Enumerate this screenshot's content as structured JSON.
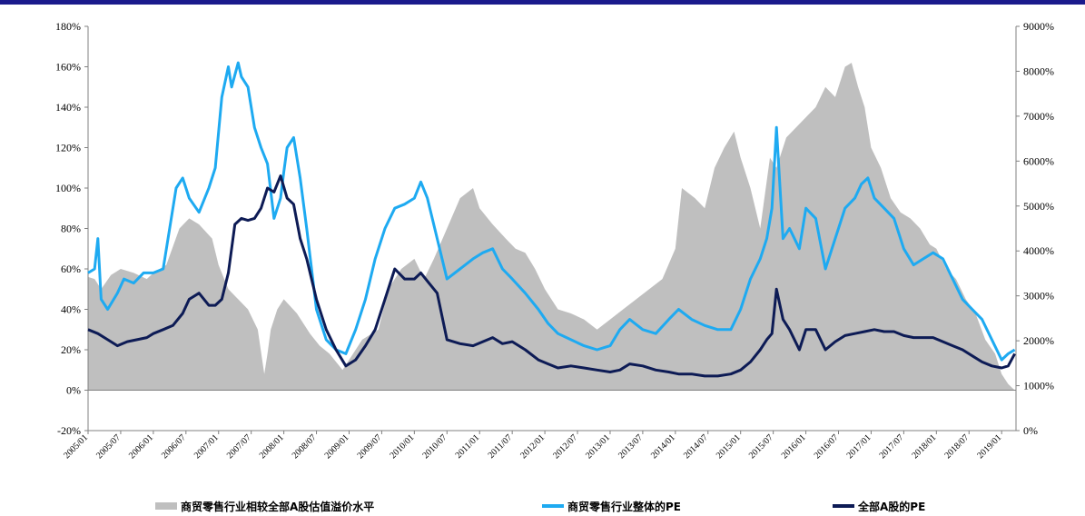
{
  "colors": {
    "top_bar": "#1a1a8c",
    "area": "#bfbfbf",
    "sector_pe": "#1eaaf1",
    "market_pe": "#0d1b55"
  },
  "chart_data": {
    "type": "line",
    "title": "",
    "xlabel": "",
    "ylabel": "",
    "ylim": [
      -20,
      180
    ],
    "y2lim": [
      0,
      9000
    ],
    "yticks": [
      "-20%",
      "0%",
      "20%",
      "40%",
      "60%",
      "80%",
      "100%",
      "120%",
      "140%",
      "160%",
      "180%"
    ],
    "y2ticks": [
      "0%",
      "1000%",
      "2000%",
      "3000%",
      "4000%",
      "5000%",
      "6000%",
      "7000%",
      "8000%",
      "9000%"
    ],
    "xticks": [
      "2005/01",
      "2005/07",
      "2006/01",
      "2006/07",
      "2007/01",
      "2007/07",
      "2008/01",
      "2008/07",
      "2009/01",
      "2009/07",
      "2010/01",
      "2010/07",
      "2011/01",
      "2011/07",
      "2012/01",
      "2012/07",
      "2013/01",
      "2013/07",
      "2014/01",
      "2014/07",
      "2015/01",
      "2015/07",
      "2016/01",
      "2016/07",
      "2017/01",
      "2017/07",
      "2018/01",
      "2018/07",
      "2019/01"
    ],
    "grid": false,
    "legend_position": "bottom",
    "series": [
      {
        "name": "商贸零售行业相较全部A股估值溢价水平",
        "kind": "area",
        "axis": "left",
        "x": [
          2005.0,
          2005.1,
          2005.2,
          2005.35,
          2005.5,
          2005.7,
          2005.9,
          2006.0,
          2006.2,
          2006.4,
          2006.55,
          2006.7,
          2006.9,
          2007.0,
          2007.15,
          2007.3,
          2007.45,
          2007.6,
          2007.7,
          2007.75,
          2007.8,
          2007.9,
          2008.0,
          2008.2,
          2008.4,
          2008.55,
          2008.7,
          2008.9,
          2009.0,
          2009.2,
          2009.45,
          2009.6,
          2009.8,
          2010.0,
          2010.15,
          2010.3,
          2010.5,
          2010.7,
          2010.9,
          2011.0,
          2011.2,
          2011.4,
          2011.55,
          2011.7,
          2011.85,
          2012.0,
          2012.2,
          2012.4,
          2012.6,
          2012.8,
          2013.0,
          2013.2,
          2013.4,
          2013.6,
          2013.8,
          2014.0,
          2014.1,
          2014.3,
          2014.45,
          2014.6,
          2014.75,
          2014.9,
          2015.0,
          2015.15,
          2015.3,
          2015.45,
          2015.55,
          2015.7,
          2015.85,
          2016.0,
          2016.15,
          2016.3,
          2016.45,
          2016.6,
          2016.7,
          2016.8,
          2016.9,
          2017.0,
          2017.15,
          2017.3,
          2017.45,
          2017.6,
          2017.75,
          2017.9,
          2018.0,
          2018.15,
          2018.3,
          2018.45,
          2018.6,
          2018.75,
          2018.9,
          2019.0,
          2019.1,
          2019.2
        ],
        "values": [
          56,
          55,
          50,
          57,
          60,
          58,
          55,
          58,
          62,
          80,
          85,
          82,
          75,
          62,
          50,
          45,
          40,
          30,
          8,
          18,
          30,
          40,
          45,
          38,
          28,
          22,
          18,
          10,
          15,
          25,
          30,
          50,
          60,
          65,
          55,
          65,
          80,
          95,
          100,
          90,
          82,
          75,
          70,
          68,
          60,
          50,
          40,
          38,
          35,
          30,
          35,
          40,
          45,
          50,
          55,
          70,
          100,
          95,
          90,
          110,
          120,
          128,
          115,
          100,
          80,
          115,
          110,
          125,
          130,
          135,
          140,
          150,
          145,
          160,
          162,
          150,
          140,
          120,
          110,
          95,
          88,
          85,
          80,
          72,
          70,
          60,
          55,
          45,
          38,
          25,
          18,
          8,
          3,
          0
        ],
        "note": "fill to zero baseline"
      },
      {
        "name": "商贸零售行业整体的PE",
        "kind": "line",
        "axis": "left",
        "x": [
          2005.0,
          2005.1,
          2005.15,
          2005.2,
          2005.3,
          2005.45,
          2005.55,
          2005.7,
          2005.85,
          2006.0,
          2006.15,
          2006.35,
          2006.45,
          2006.55,
          2006.7,
          2006.85,
          2006.95,
          2007.05,
          2007.15,
          2007.2,
          2007.3,
          2007.35,
          2007.45,
          2007.55,
          2007.65,
          2007.75,
          2007.85,
          2007.95,
          2008.0,
          2008.05,
          2008.15,
          2008.25,
          2008.35,
          2008.5,
          2008.65,
          2008.8,
          2008.95,
          2009.1,
          2009.25,
          2009.4,
          2009.55,
          2009.7,
          2009.85,
          2010.0,
          2010.1,
          2010.2,
          2010.35,
          2010.5,
          2010.7,
          2010.9,
          2011.05,
          2011.2,
          2011.35,
          2011.5,
          2011.7,
          2011.9,
          2012.05,
          2012.2,
          2012.4,
          2012.6,
          2012.8,
          2013.0,
          2013.15,
          2013.3,
          2013.5,
          2013.7,
          2013.9,
          2014.05,
          2014.25,
          2014.45,
          2014.65,
          2014.85,
          2015.0,
          2015.15,
          2015.3,
          2015.4,
          2015.48,
          2015.55,
          2015.65,
          2015.75,
          2015.9,
          2016.0,
          2016.15,
          2016.3,
          2016.45,
          2016.6,
          2016.75,
          2016.85,
          2016.95,
          2017.05,
          2017.2,
          2017.35,
          2017.5,
          2017.65,
          2017.8,
          2017.95,
          2018.1,
          2018.25,
          2018.4,
          2018.55,
          2018.7,
          2018.85,
          2019.0,
          2019.1,
          2019.2
        ],
        "values": [
          58,
          60,
          75,
          45,
          40,
          48,
          55,
          53,
          58,
          58,
          60,
          100,
          105,
          95,
          88,
          100,
          110,
          145,
          160,
          150,
          162,
          155,
          150,
          130,
          120,
          112,
          85,
          95,
          108,
          120,
          125,
          105,
          80,
          40,
          25,
          20,
          18,
          30,
          45,
          65,
          80,
          90,
          92,
          95,
          103,
          95,
          75,
          55,
          60,
          65,
          68,
          70,
          60,
          55,
          48,
          40,
          33,
          28,
          25,
          22,
          20,
          22,
          30,
          35,
          30,
          28,
          35,
          40,
          35,
          32,
          30,
          30,
          40,
          55,
          65,
          75,
          90,
          130,
          75,
          80,
          70,
          90,
          85,
          60,
          75,
          90,
          95,
          102,
          105,
          95,
          90,
          85,
          70,
          62,
          65,
          68,
          65,
          55,
          45,
          40,
          35,
          25,
          15,
          18,
          20
        ]
      },
      {
        "name": "全部A股的PE",
        "kind": "line",
        "axis": "left",
        "x": [
          2005.0,
          2005.15,
          2005.3,
          2005.45,
          2005.6,
          2005.75,
          2005.9,
          2006.0,
          2006.15,
          2006.3,
          2006.45,
          2006.55,
          2006.7,
          2006.85,
          2006.95,
          2007.05,
          2007.15,
          2007.25,
          2007.35,
          2007.45,
          2007.55,
          2007.65,
          2007.75,
          2007.85,
          2007.95,
          2008.05,
          2008.15,
          2008.25,
          2008.35,
          2008.5,
          2008.65,
          2008.8,
          2008.95,
          2009.1,
          2009.25,
          2009.4,
          2009.55,
          2009.7,
          2009.85,
          2010.0,
          2010.1,
          2010.2,
          2010.35,
          2010.5,
          2010.7,
          2010.9,
          2011.05,
          2011.2,
          2011.35,
          2011.5,
          2011.7,
          2011.9,
          2012.05,
          2012.2,
          2012.4,
          2012.6,
          2012.8,
          2013.0,
          2013.15,
          2013.3,
          2013.5,
          2013.7,
          2013.9,
          2014.05,
          2014.25,
          2014.45,
          2014.65,
          2014.85,
          2015.0,
          2015.15,
          2015.3,
          2015.4,
          2015.48,
          2015.55,
          2015.65,
          2015.75,
          2015.9,
          2016.0,
          2016.15,
          2016.3,
          2016.45,
          2016.6,
          2016.75,
          2016.9,
          2017.05,
          2017.2,
          2017.35,
          2017.5,
          2017.65,
          2017.8,
          2017.95,
          2018.1,
          2018.25,
          2018.4,
          2018.55,
          2018.7,
          2018.85,
          2019.0,
          2019.1,
          2019.2
        ],
        "values": [
          30,
          28,
          25,
          22,
          24,
          25,
          26,
          28,
          30,
          32,
          38,
          45,
          48,
          42,
          42,
          45,
          58,
          82,
          85,
          84,
          85,
          90,
          100,
          98,
          106,
          95,
          92,
          75,
          65,
          45,
          30,
          20,
          12,
          15,
          22,
          30,
          45,
          60,
          55,
          55,
          58,
          54,
          48,
          25,
          23,
          22,
          24,
          26,
          23,
          24,
          20,
          15,
          13,
          11,
          12,
          11,
          10,
          9,
          10,
          13,
          12,
          10,
          9,
          8,
          8,
          7,
          7,
          8,
          10,
          14,
          20,
          25,
          28,
          50,
          35,
          30,
          20,
          30,
          30,
          20,
          24,
          27,
          28,
          29,
          30,
          29,
          29,
          27,
          26,
          26,
          26,
          24,
          22,
          20,
          17,
          14,
          12,
          11,
          12,
          18
        ]
      }
    ]
  }
}
